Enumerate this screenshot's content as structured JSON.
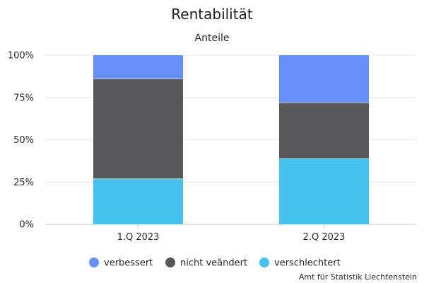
{
  "chart_data": {
    "type": "bar",
    "stacked": true,
    "title": "Rentabilität",
    "subtitle": "Anteile",
    "categories": [
      "1.Q 2023",
      "2.Q 2023"
    ],
    "series": [
      {
        "name": "verschlechtert",
        "color": "#45c2f0",
        "values": [
          27,
          39
        ]
      },
      {
        "name": "nicht veändert",
        "color": "#58585a",
        "values": [
          59,
          33
        ]
      },
      {
        "name": "verbessert",
        "color": "#6890fb",
        "values": [
          14,
          28
        ]
      }
    ],
    "legend_order": [
      "verbessert",
      "nicht veändert",
      "verschlechtert"
    ],
    "ylim": [
      0,
      100
    ],
    "yticks": [
      0,
      25,
      50,
      75,
      100
    ],
    "ytick_labels": [
      "0%",
      "25%",
      "50%",
      "75%",
      "100%"
    ],
    "grid": true,
    "legend_position": "bottom",
    "source": "Amt für Statistik Liechtenstein"
  }
}
